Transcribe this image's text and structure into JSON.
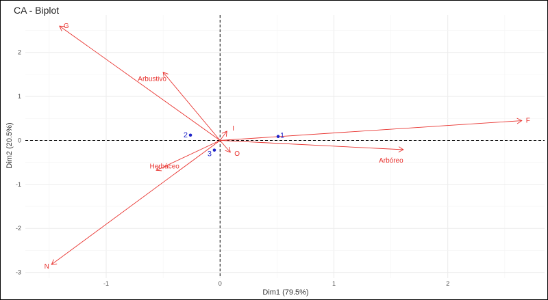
{
  "chart_data": {
    "type": "scatter",
    "title": "CA - Biplot",
    "xlabel": "Dim1 (79.5%)",
    "ylabel": "Dim2 (20.5%)",
    "xlim": [
      -1.71,
      2.85
    ],
    "ylim": [
      -3.13,
      2.85
    ],
    "xticks": [
      -1,
      0,
      1,
      2
    ],
    "yticks": [
      -3,
      -2,
      -1,
      0,
      1,
      2
    ],
    "grid": true,
    "zero_lines": "dashed",
    "points": [
      {
        "label": "1",
        "x": 0.51,
        "y": 0.09
      },
      {
        "label": "2",
        "x": -0.26,
        "y": 0.12
      },
      {
        "label": "3",
        "x": -0.05,
        "y": -0.22
      }
    ],
    "arrows": [
      {
        "label": "G",
        "x": -1.41,
        "y": 2.6
      },
      {
        "label": "Arbustivo",
        "x": -0.5,
        "y": 1.55
      },
      {
        "label": "F",
        "x": 2.65,
        "y": 0.45
      },
      {
        "label": "I",
        "x": 0.06,
        "y": 0.21
      },
      {
        "label": "O",
        "x": 0.09,
        "y": -0.27
      },
      {
        "label": "Arbóreo",
        "x": 1.61,
        "y": -0.21
      },
      {
        "label": "Herbáceo",
        "x": -0.56,
        "y": -0.68
      },
      {
        "label": "N",
        "x": -1.48,
        "y": -2.82
      }
    ],
    "colors": {
      "arrows": "#e8312d",
      "points": "#1f24c8"
    }
  }
}
